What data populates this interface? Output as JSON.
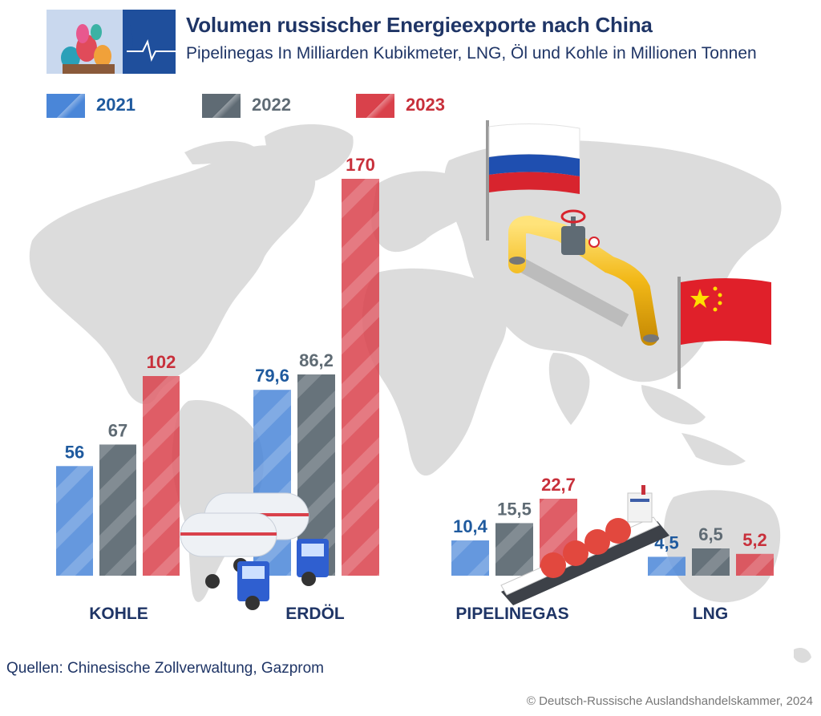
{
  "header": {
    "title": "Volumen russischer Energieexporte nach China",
    "subtitle": "Pipelinegas In Milliarden Kubikmeter, LNG, Öl und Kohle in Millionen Tonnen"
  },
  "legend": [
    {
      "label": "2021",
      "color": "#4a86d8"
    },
    {
      "label": "2022",
      "color": "#5f6b74"
    },
    {
      "label": "2023",
      "color": "#d9414b"
    }
  ],
  "chart_data": {
    "type": "bar",
    "title": "Volumen russischer Energieexporte nach China",
    "subtitle": "Pipelinegas In Milliarden Kubikmeter, LNG, Öl und Kohle in Millionen Tonnen",
    "categories": [
      "KOHLE",
      "ERDÖL",
      "PIPELINEGAS",
      "LNG"
    ],
    "series": [
      {
        "name": "2021",
        "values": [
          56,
          79.6,
          10.4,
          4.5
        ],
        "labels": [
          "56",
          "79,6",
          "10,4",
          "4,5"
        ]
      },
      {
        "name": "2022",
        "values": [
          67,
          86.2,
          15.5,
          6.5
        ],
        "labels": [
          "67",
          "86,2",
          "15,5",
          "6,5"
        ]
      },
      {
        "name": "2023",
        "values": [
          102,
          170,
          22.7,
          5.2
        ],
        "labels": [
          "102",
          "170",
          "22,7",
          "5,2"
        ]
      }
    ],
    "units": {
      "KOHLE": "Millionen Tonnen",
      "ERDÖL": "Millionen Tonnen",
      "PIPELINEGAS": "Milliarden Kubikmeter",
      "LNG": "Millionen Tonnen"
    },
    "colors": [
      "#4a86d8",
      "#5f6b74",
      "#d9414b"
    ],
    "value_colors": [
      "#1f5a9e",
      "#5f6b74",
      "#c8303b"
    ]
  },
  "footer": {
    "source": "Quellen: Chinesische Zollverwaltung, Gazprom",
    "copyright": "© Deutsch-Russische Auslandshandelskammer, 2024"
  }
}
